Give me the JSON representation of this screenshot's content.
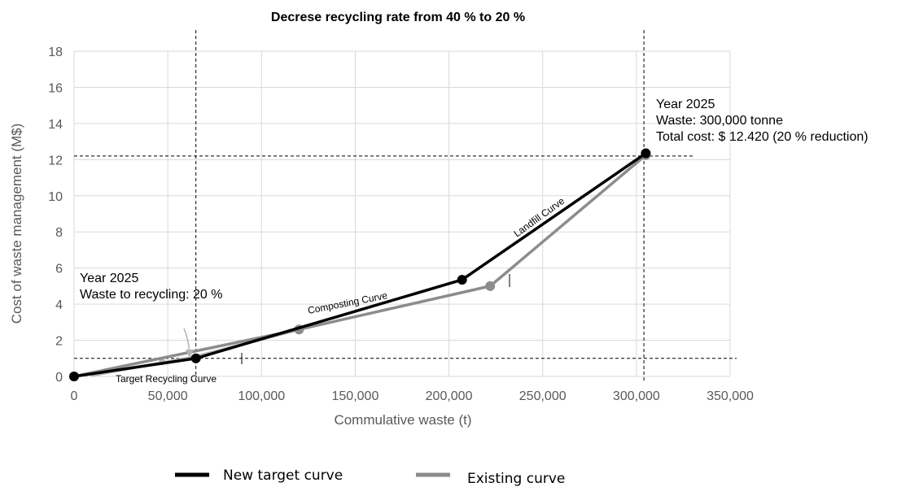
{
  "chart_data": {
    "type": "line",
    "title": "Decrese recycling rate from 40 % to 20 %",
    "xlabel": "Commulative waste (t)",
    "ylabel": "Cost of waste management (M$)",
    "xlim": [
      0,
      350000
    ],
    "ylim": [
      0,
      18
    ],
    "x_ticks": [
      0,
      50000,
      100000,
      150000,
      200000,
      250000,
      300000,
      350000
    ],
    "x_tick_labels": [
      "0",
      "50,000",
      "100,000",
      "150,000",
      "200,000",
      "250,000",
      "300,000",
      "350,000"
    ],
    "y_ticks": [
      0,
      2,
      4,
      6,
      8,
      10,
      12,
      14,
      16,
      18
    ],
    "y_tick_labels": [
      "0",
      "2",
      "4",
      "6",
      "8",
      "10",
      "12",
      "14",
      "16",
      "18"
    ],
    "grid": true,
    "legend_position": "bottom",
    "series": [
      {
        "name": "New target curve",
        "color": "#000000",
        "points": [
          [
            0,
            0
          ],
          [
            65000,
            1.0
          ],
          [
            207000,
            5.35
          ],
          [
            305000,
            12.35
          ]
        ]
      },
      {
        "name": "Existing curve",
        "color": "#8c8c8c",
        "points": [
          [
            0,
            0
          ],
          [
            120000,
            2.6
          ],
          [
            222000,
            5.0
          ],
          [
            305000,
            12.25
          ]
        ]
      }
    ],
    "segments": [
      {
        "name": "Target Recycling Curve",
        "color": "#b3b3b3",
        "points": [
          [
            9000,
            0.05
          ],
          [
            65000,
            1.1
          ],
          [
            122000,
            2.65
          ]
        ]
      }
    ],
    "reference_lines": {
      "vertical": [
        65000,
        304000
      ],
      "horizontal": [
        1.0,
        12.2
      ]
    },
    "annotations": {
      "left": {
        "lines": [
          "Year 2025",
          "Waste to recycling: 20 %"
        ]
      },
      "right": {
        "lines": [
          "Year 2025",
          "Waste: 300,000 tonne",
          "Total cost: $ 12.420 (20 % reduction)"
        ]
      }
    },
    "curve_labels": [
      "Composting Curve",
      "Landfill Curve",
      "Target Recycling Curve"
    ]
  }
}
